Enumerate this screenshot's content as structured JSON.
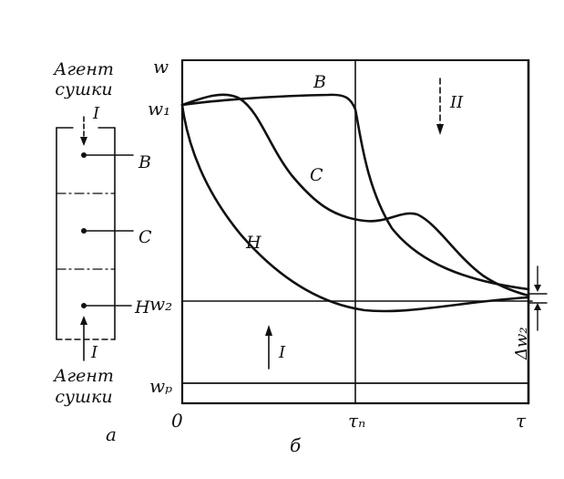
{
  "panel_a": {
    "agent_top": [
      "Агент",
      "сушки"
    ],
    "agent_bottom": [
      "Агент",
      "сушки"
    ],
    "arrow_top_label": "I",
    "arrow_bottom_label": "I",
    "point_B": "В",
    "point_C": "С",
    "point_H": "Н",
    "caption": "а"
  },
  "panel_b": {
    "y_axis_label": "w",
    "w1_label": "w₁",
    "w2_label": "w₂",
    "wp_label": "wₚ",
    "origin_label": "0",
    "tau_n_label": "τₙ",
    "tau_label": "τ",
    "delta_w2_label": "Δw₂",
    "curve_B_label": "В",
    "curve_C_label": "С",
    "curve_H_label": "Н",
    "arrow_I_label": "I",
    "arrow_II_label": "II",
    "caption": "б"
  }
}
